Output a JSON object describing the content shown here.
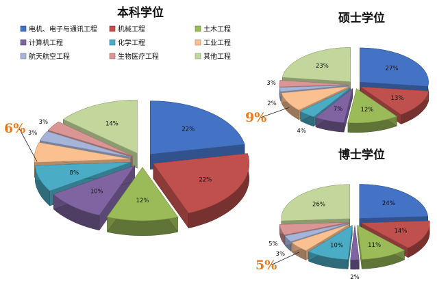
{
  "legend": {
    "items": [
      {
        "label": "电机、电子与通讯工程",
        "color": "#4472c4"
      },
      {
        "label": "机械工程",
        "color": "#c0504d"
      },
      {
        "label": "土木工程",
        "color": "#9bbb59"
      },
      {
        "label": "计算机工程",
        "color": "#8064a2"
      },
      {
        "label": "化学工程",
        "color": "#4bacc6"
      },
      {
        "label": "工业工程",
        "color": "#fac090"
      },
      {
        "label": "航天航空工程",
        "color": "#a5b4d8"
      },
      {
        "label": "生物医疗工程",
        "color": "#d99694"
      },
      {
        "label": "其他工程",
        "color": "#c3d69b"
      }
    ]
  },
  "chart_data": [
    {
      "type": "pie",
      "title": "本科学位",
      "categories": [
        "电机、电子与通讯工程",
        "机械工程",
        "土木工程",
        "计算机工程",
        "化学工程",
        "工业工程",
        "航天航空工程",
        "生物医疗工程",
        "其他工程"
      ],
      "values": [
        22,
        22,
        12,
        10,
        8,
        6,
        3,
        3,
        14
      ],
      "labels": [
        "22%",
        "22%",
        "12%",
        "10%",
        "8%",
        "6%",
        "3%",
        "3%",
        "14%"
      ],
      "highlight": {
        "category": "工业工程",
        "label": "6%"
      }
    },
    {
      "type": "pie",
      "title": "硕士学位",
      "categories": [
        "电机、电子与通讯工程",
        "机械工程",
        "土木工程",
        "计算机工程",
        "化学工程",
        "工业工程",
        "航天航空工程",
        "生物医疗工程",
        "其他工程"
      ],
      "values": [
        27,
        13,
        12,
        7,
        4,
        9,
        2,
        3,
        23
      ],
      "labels": [
        "27%",
        "13%",
        "12%",
        "7%",
        "4%",
        "9%",
        "2%",
        "3%",
        "23%"
      ],
      "highlight": {
        "category": "工业工程",
        "label": "9%"
      }
    },
    {
      "type": "pie",
      "title": "博士学位",
      "categories": [
        "电机、电子与通讯工程",
        "机械工程",
        "土木工程",
        "计算机工程",
        "化学工程",
        "工业工程",
        "航天航空工程",
        "生物医疗工程",
        "其他工程"
      ],
      "values": [
        24,
        14,
        11,
        2,
        10,
        5,
        3,
        5,
        26
      ],
      "labels": [
        "24%",
        "14%",
        "11%",
        "2%",
        "10%",
        "5%",
        "3%",
        "5%",
        "26%"
      ],
      "highlight": {
        "category": "工业工程",
        "label": "5%"
      }
    }
  ]
}
